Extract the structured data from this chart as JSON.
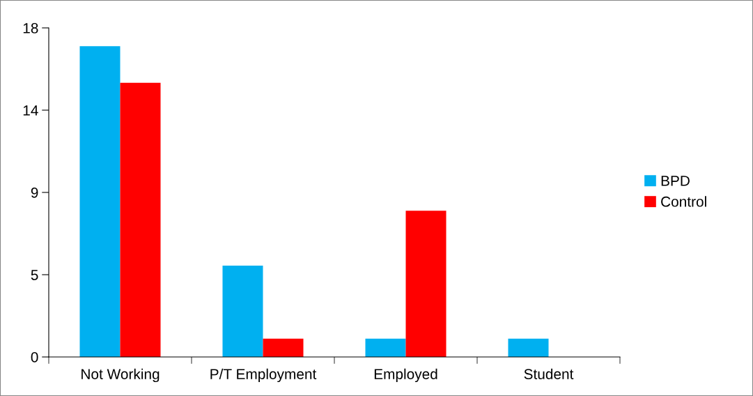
{
  "chart_data": {
    "type": "bar",
    "categories": [
      "Not Working",
      "P/T Employment",
      "Employed",
      "Student"
    ],
    "series": [
      {
        "name": "BPD",
        "color": "#00b0f0",
        "values": [
          17,
          5,
          1,
          1
        ]
      },
      {
        "name": "Control",
        "color": "#ff0000",
        "values": [
          15,
          1,
          8,
          0
        ]
      }
    ],
    "ylim": [
      0,
      18
    ],
    "yticks": [
      0,
      {
        "value": 4.5,
        "label": "5"
      },
      9,
      {
        "value": 13.5,
        "label": "14"
      },
      18
    ],
    "grid": false,
    "legend": "right"
  }
}
